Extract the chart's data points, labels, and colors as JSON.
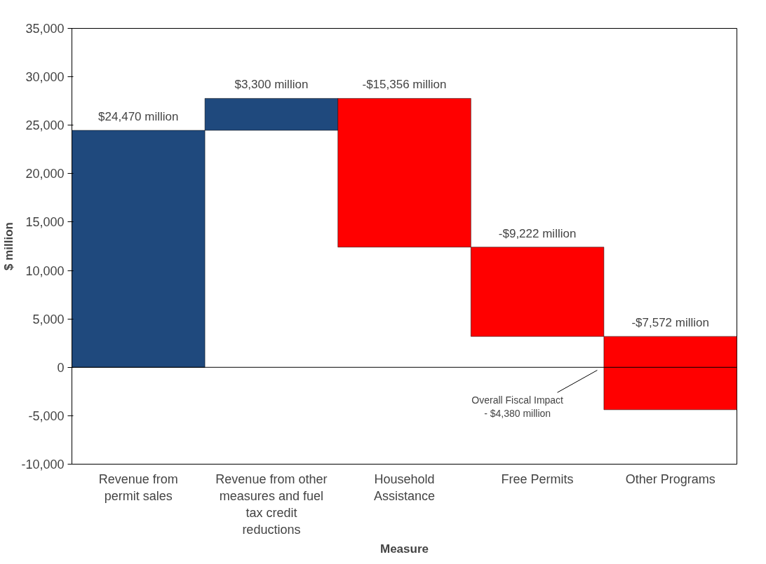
{
  "chart_data": {
    "type": "bar",
    "xlabel": "Measure",
    "ylabel": "$ million",
    "categories": [
      "Revenue from permit sales",
      "Revenue from other measures and fuel tax credit reductions",
      "Household Assistance",
      "Free Permits",
      "Other Programs"
    ],
    "values": [
      24470,
      3300,
      -15356,
      -9222,
      -7572
    ],
    "base": [
      0,
      24470,
      27770,
      12414,
      3192
    ],
    "colors": [
      "#1f497d",
      "#1f497d",
      "#ff0000",
      "#ff0000",
      "#ff0000"
    ],
    "value_labels": [
      "$24,470 million",
      "$3,300 million",
      "-$15,356 million",
      "-$9,222 million",
      "-$7,572 million"
    ],
    "ylim": [
      -10000,
      35000
    ],
    "yticks": [
      {
        "value": -10000,
        "label": "-10,000"
      },
      {
        "value": -5000,
        "label": "-5,000"
      },
      0,
      {
        "value": 5000,
        "label": "5,000"
      },
      {
        "value": 10000,
        "label": "10,000"
      },
      {
        "value": 15000,
        "label": "15,000"
      },
      {
        "value": 20000,
        "label": "20,000"
      },
      {
        "value": 25000,
        "label": "25,000"
      },
      {
        "value": 30000,
        "label": "30,000"
      },
      {
        "value": 35000,
        "label": "35,000"
      }
    ],
    "ref_lines": [
      {
        "axis": "y",
        "value": 0,
        "color": "#000000"
      }
    ],
    "annotations": [
      "Overall Fiscal Impact\n- $4,380 million"
    ],
    "grid": false
  }
}
